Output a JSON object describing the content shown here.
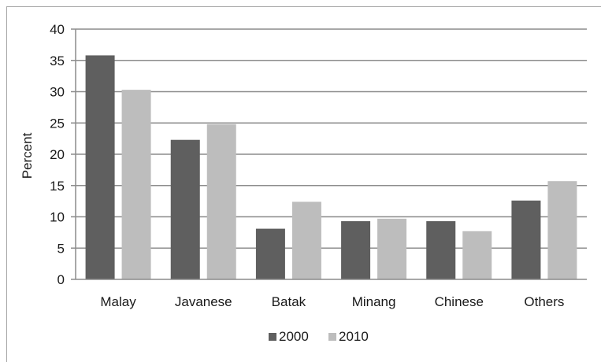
{
  "chart_data": {
    "type": "bar",
    "title": "",
    "xlabel": "",
    "ylabel": "Percent",
    "ylim": [
      0,
      40
    ],
    "yticks": [
      "0",
      "5",
      "10",
      "15",
      "20",
      "25",
      "30",
      "35",
      "40"
    ],
    "categories": [
      "Malay",
      "Javanese",
      "Batak",
      "Minang",
      "Chinese",
      "Others"
    ],
    "series": [
      {
        "name": "2000",
        "color": "#5f5f5f",
        "values": [
          35.8,
          22.3,
          8.1,
          9.3,
          9.3,
          12.6
        ]
      },
      {
        "name": "2010",
        "color": "#bdbdbd",
        "values": [
          30.3,
          24.8,
          12.4,
          9.7,
          7.7,
          15.7
        ]
      }
    ],
    "grid": true,
    "legend_position": "bottom"
  }
}
